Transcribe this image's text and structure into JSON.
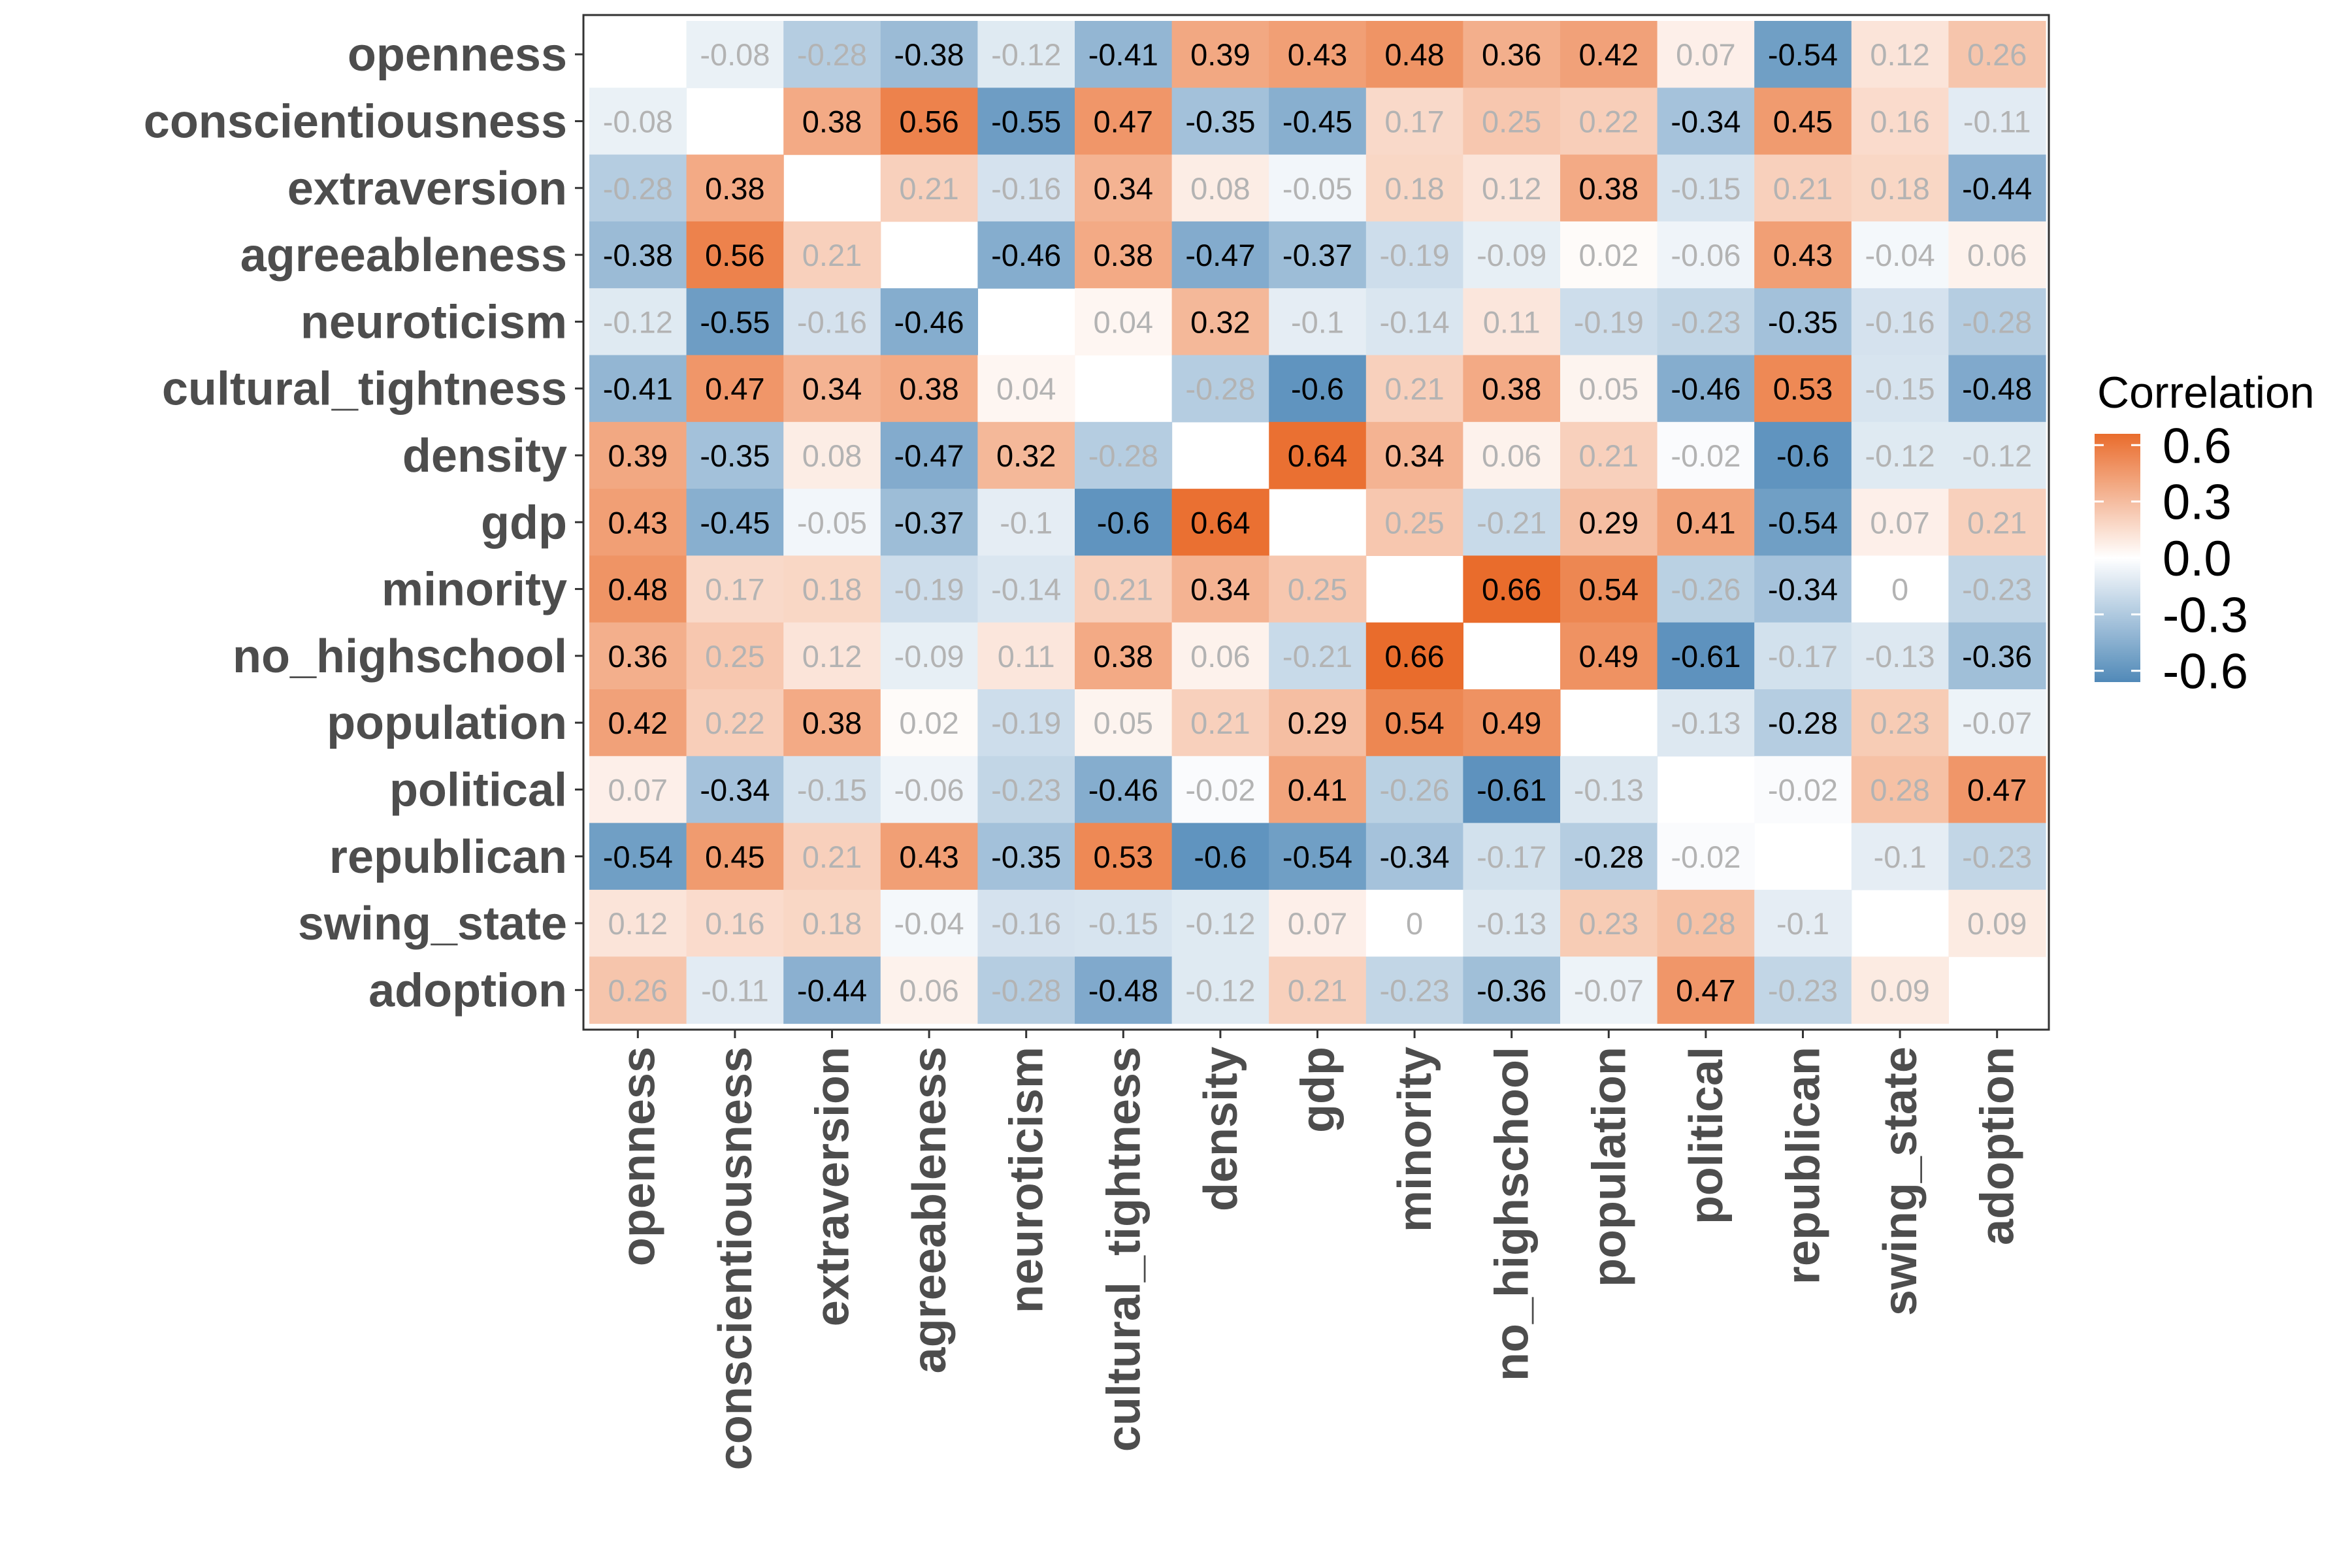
{
  "chart_data": {
    "type": "heatmap",
    "title": "",
    "xlabel": "",
    "ylabel": "",
    "variables": [
      "openness",
      "conscientiousness",
      "extraversion",
      "agreeableness",
      "neuroticism",
      "cultural_tightness",
      "density",
      "gdp",
      "minority",
      "no_highschool",
      "population",
      "political",
      "republican",
      "swing_state",
      "adoption"
    ],
    "matrix": [
      [
        null,
        -0.08,
        -0.28,
        -0.38,
        -0.12,
        -0.41,
        0.39,
        0.43,
        0.48,
        0.36,
        0.42,
        0.07,
        -0.54,
        0.12,
        0.26
      ],
      [
        -0.08,
        null,
        0.38,
        0.56,
        -0.55,
        0.47,
        -0.35,
        -0.45,
        0.17,
        0.25,
        0.22,
        -0.34,
        0.45,
        0.16,
        -0.11
      ],
      [
        -0.28,
        0.38,
        null,
        0.21,
        -0.16,
        0.34,
        0.08,
        -0.05,
        0.18,
        0.12,
        0.38,
        -0.15,
        0.21,
        0.18,
        -0.44
      ],
      [
        -0.38,
        0.56,
        0.21,
        null,
        -0.46,
        0.38,
        -0.47,
        -0.37,
        -0.19,
        -0.09,
        0.02,
        -0.06,
        0.43,
        -0.04,
        0.06
      ],
      [
        -0.12,
        -0.55,
        -0.16,
        -0.46,
        null,
        0.04,
        0.32,
        -0.1,
        -0.14,
        0.11,
        -0.19,
        -0.23,
        -0.35,
        -0.16,
        -0.28
      ],
      [
        -0.41,
        0.47,
        0.34,
        0.38,
        0.04,
        null,
        -0.28,
        -0.6,
        0.21,
        0.38,
        0.05,
        -0.46,
        0.53,
        -0.15,
        -0.48
      ],
      [
        0.39,
        -0.35,
        0.08,
        -0.47,
        0.32,
        -0.28,
        null,
        0.64,
        0.34,
        0.06,
        0.21,
        -0.02,
        -0.6,
        -0.12,
        -0.12
      ],
      [
        0.43,
        -0.45,
        -0.05,
        -0.37,
        -0.1,
        -0.6,
        0.64,
        null,
        0.25,
        -0.21,
        0.29,
        0.41,
        -0.54,
        0.07,
        0.21
      ],
      [
        0.48,
        0.17,
        0.18,
        -0.19,
        -0.14,
        0.21,
        0.34,
        0.25,
        null,
        0.66,
        0.54,
        -0.26,
        -0.34,
        0,
        -0.23
      ],
      [
        0.36,
        0.25,
        0.12,
        -0.09,
        0.11,
        0.38,
        0.06,
        -0.21,
        0.66,
        null,
        0.49,
        -0.61,
        -0.17,
        -0.13,
        -0.36
      ],
      [
        0.42,
        0.22,
        0.38,
        0.02,
        -0.19,
        0.05,
        0.21,
        0.29,
        0.54,
        0.49,
        null,
        -0.13,
        -0.28,
        0.23,
        -0.07
      ],
      [
        0.07,
        -0.34,
        -0.15,
        -0.06,
        -0.23,
        -0.46,
        -0.02,
        0.41,
        -0.26,
        -0.61,
        -0.13,
        null,
        -0.02,
        0.28,
        0.47
      ],
      [
        -0.54,
        0.45,
        0.21,
        0.43,
        -0.35,
        0.53,
        -0.6,
        -0.54,
        -0.34,
        -0.17,
        -0.28,
        -0.02,
        null,
        -0.1,
        -0.23
      ],
      [
        0.12,
        0.16,
        0.18,
        -0.04,
        -0.16,
        -0.15,
        -0.12,
        0.07,
        0,
        -0.13,
        0.23,
        0.28,
        -0.1,
        null,
        0.09
      ],
      [
        0.26,
        -0.11,
        -0.44,
        0.06,
        -0.28,
        -0.48,
        -0.12,
        0.21,
        -0.23,
        -0.36,
        -0.07,
        0.47,
        -0.23,
        0.09,
        null
      ]
    ],
    "significant": [
      [
        0,
        0,
        0,
        1,
        0,
        1,
        1,
        1,
        1,
        1,
        1,
        0,
        1,
        0,
        0
      ],
      [
        0,
        0,
        1,
        1,
        1,
        1,
        1,
        1,
        0,
        0,
        0,
        1,
        1,
        0,
        0
      ],
      [
        0,
        1,
        0,
        0,
        0,
        1,
        0,
        0,
        0,
        0,
        1,
        0,
        0,
        0,
        1
      ],
      [
        1,
        1,
        0,
        0,
        1,
        1,
        1,
        1,
        0,
        0,
        0,
        0,
        1,
        0,
        0
      ],
      [
        0,
        1,
        0,
        1,
        0,
        0,
        1,
        0,
        0,
        0,
        0,
        0,
        1,
        0,
        0
      ],
      [
        1,
        1,
        1,
        1,
        0,
        0,
        0,
        1,
        0,
        1,
        0,
        1,
        1,
        0,
        1
      ],
      [
        1,
        1,
        0,
        1,
        1,
        0,
        0,
        1,
        1,
        0,
        0,
        0,
        1,
        0,
        0
      ],
      [
        1,
        1,
        0,
        1,
        0,
        1,
        1,
        0,
        0,
        0,
        1,
        1,
        1,
        0,
        0
      ],
      [
        1,
        0,
        0,
        0,
        0,
        0,
        1,
        0,
        0,
        1,
        1,
        0,
        1,
        0,
        0
      ],
      [
        1,
        0,
        0,
        0,
        0,
        1,
        0,
        0,
        1,
        0,
        1,
        1,
        0,
        0,
        1
      ],
      [
        1,
        0,
        1,
        0,
        0,
        0,
        0,
        1,
        1,
        1,
        0,
        0,
        1,
        0,
        0
      ],
      [
        0,
        1,
        0,
        0,
        0,
        1,
        0,
        1,
        0,
        1,
        0,
        0,
        0,
        0,
        1
      ],
      [
        1,
        1,
        0,
        1,
        1,
        1,
        1,
        1,
        1,
        0,
        1,
        0,
        0,
        0,
        0
      ],
      [
        0,
        0,
        0,
        0,
        0,
        0,
        0,
        0,
        0,
        0,
        0,
        0,
        0,
        0,
        0
      ],
      [
        0,
        0,
        1,
        0,
        0,
        1,
        0,
        0,
        0,
        1,
        0,
        1,
        0,
        0,
        0
      ]
    ],
    "color_scale": {
      "low": "#4682b4",
      "mid": "#ffffff",
      "high": "#e8631f",
      "limits": [
        -0.7,
        0.7
      ]
    },
    "text_colors": {
      "significant": "#000000",
      "nonsignificant": "#b3b3b3"
    },
    "legend": {
      "title": "Correlation",
      "ticks": [
        "0.6",
        "0.3",
        "0.0",
        "-0.3",
        "-0.6"
      ],
      "tick_values": [
        0.6,
        0.3,
        0.0,
        -0.3,
        -0.6
      ],
      "range": [
        -0.66,
        0.66
      ],
      "position": "right"
    }
  }
}
